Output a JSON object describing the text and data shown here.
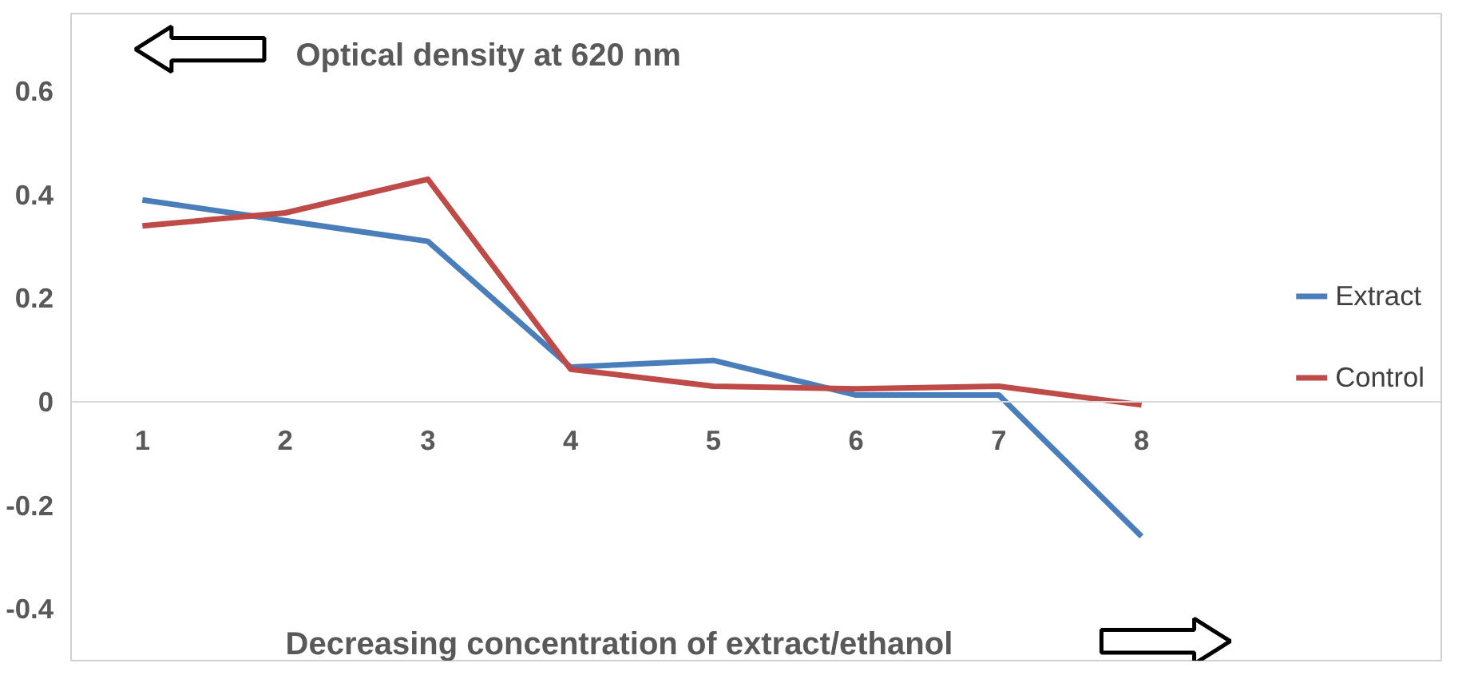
{
  "chart_data": {
    "type": "line",
    "ylabel": "Optical density at 620 nm",
    "xlabel": "Decreasing concentration of extract/ethanol",
    "x": [
      1,
      2,
      3,
      4,
      5,
      6,
      7,
      8
    ],
    "xlim": [
      0.5,
      10.1
    ],
    "xticks": [
      1,
      2,
      3,
      4,
      5,
      6,
      7,
      8
    ],
    "ylim": [
      -0.5,
      0.75
    ],
    "yticks": [
      {
        "value": -0.4,
        "label": "-0.4"
      },
      {
        "value": -0.2,
        "label": "-0.2"
      },
      {
        "value": 0,
        "label": "0"
      },
      {
        "value": 0.2,
        "label": "0.2"
      },
      {
        "value": 0.4,
        "label": "0.4"
      },
      {
        "value": 0.6,
        "label": "0.6"
      }
    ],
    "series": [
      {
        "name": "Extract",
        "color": "#4a7ebb",
        "values": [
          0.39,
          0.35,
          0.31,
          0.067,
          0.08,
          0.013,
          0.013,
          -0.26
        ]
      },
      {
        "name": "Control",
        "color": "#be4b48",
        "values": [
          0.34,
          0.365,
          0.43,
          0.063,
          0.03,
          0.025,
          0.03,
          -0.006
        ]
      }
    ],
    "grid": false,
    "legend": "right",
    "marker": "none",
    "line_style": "solid"
  }
}
